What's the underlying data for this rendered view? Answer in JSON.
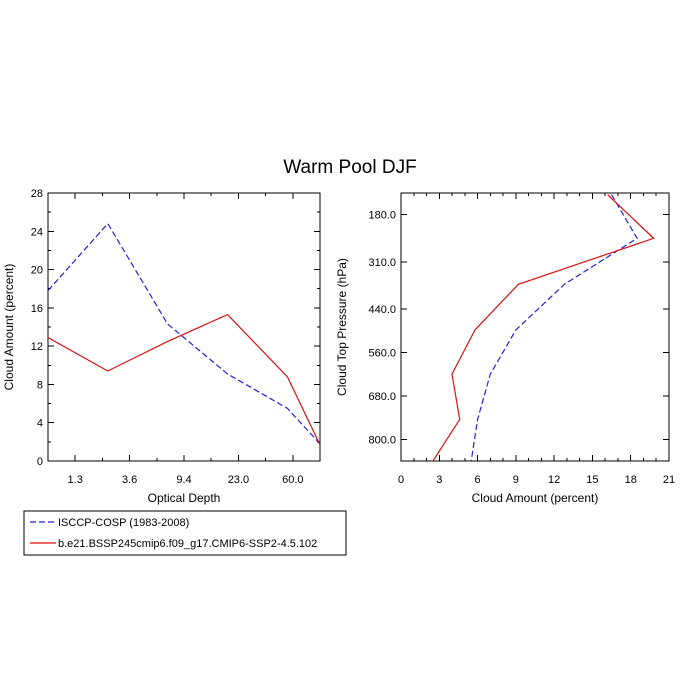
{
  "title": "Warm Pool DJF",
  "colors": {
    "obs": "#2222dd",
    "model": "#dd1111"
  },
  "legend": [
    {
      "label": "ISCCP-COSP (1983-2008)",
      "color": "#2222dd",
      "dash": true
    },
    {
      "label": "b.e21.BSSP245cmip6.f09_g17.CMIP6-SSP2-4.5.102",
      "color": "#dd1111",
      "dash": false
    }
  ],
  "chart_data": [
    {
      "type": "line",
      "xlabel": "Optical Depth",
      "ylabel": "Cloud Amount (percent)",
      "x_categories": [
        "",
        "1.3",
        "",
        "3.6",
        "",
        "9.4",
        "",
        "23.0",
        "",
        "60.0",
        ""
      ],
      "xlim": [
        0,
        10
      ],
      "ylim": [
        0,
        28
      ],
      "y_ticks": [
        0,
        4,
        8,
        12,
        16,
        20,
        24,
        28
      ],
      "series": [
        {
          "name": "ISCCP-COSP (1983-2008)",
          "color": "#2222dd",
          "dash": true,
          "x": [
            0,
            2.2,
            4.4,
            6.6,
            8.8,
            10
          ],
          "y": [
            17.8,
            24.8,
            14.3,
            9.1,
            5.5,
            1.8
          ]
        },
        {
          "name": "b.e21.BSSP245cmip6.f09_g17.CMIP6-SSP2-4.5.102",
          "color": "#dd1111",
          "dash": false,
          "x": [
            0,
            2.2,
            4.4,
            6.6,
            8.8,
            10
          ],
          "y": [
            12.9,
            9.4,
            12.5,
            15.3,
            8.8,
            1.7
          ]
        }
      ]
    },
    {
      "type": "line",
      "xlabel": "Cloud Amount (percent)",
      "ylabel": "Cloud Top Pressure (hPa)",
      "xlim": [
        0,
        21
      ],
      "x_ticks": [
        0,
        3,
        6,
        9,
        12,
        15,
        18,
        21
      ],
      "ylim": [
        120,
        860
      ],
      "y_ticks": [
        180,
        310,
        440,
        560,
        680,
        800
      ],
      "y_tick_labels": [
        "180.0",
        "310.0",
        "440.0",
        "560.0",
        "680.0",
        "800.0"
      ],
      "y_inverted": true,
      "series": [
        {
          "name": "ISCCP-COSP (1983-2008)",
          "color": "#2222dd",
          "dash": true,
          "x": [
            16.5,
            18.5,
            12.8,
            9.0,
            7.0,
            6.0,
            5.5
          ],
          "y": [
            125,
            245,
            372,
            498,
            620,
            745,
            860
          ]
        },
        {
          "name": "b.e21.BSSP245cmip6.f09_g17.CMIP6-SSP2-4.5.102",
          "color": "#dd1111",
          "dash": false,
          "x": [
            16.2,
            19.8,
            9.2,
            5.8,
            4.0,
            4.6,
            2.5
          ],
          "y": [
            125,
            245,
            372,
            498,
            620,
            745,
            860
          ]
        }
      ]
    }
  ]
}
